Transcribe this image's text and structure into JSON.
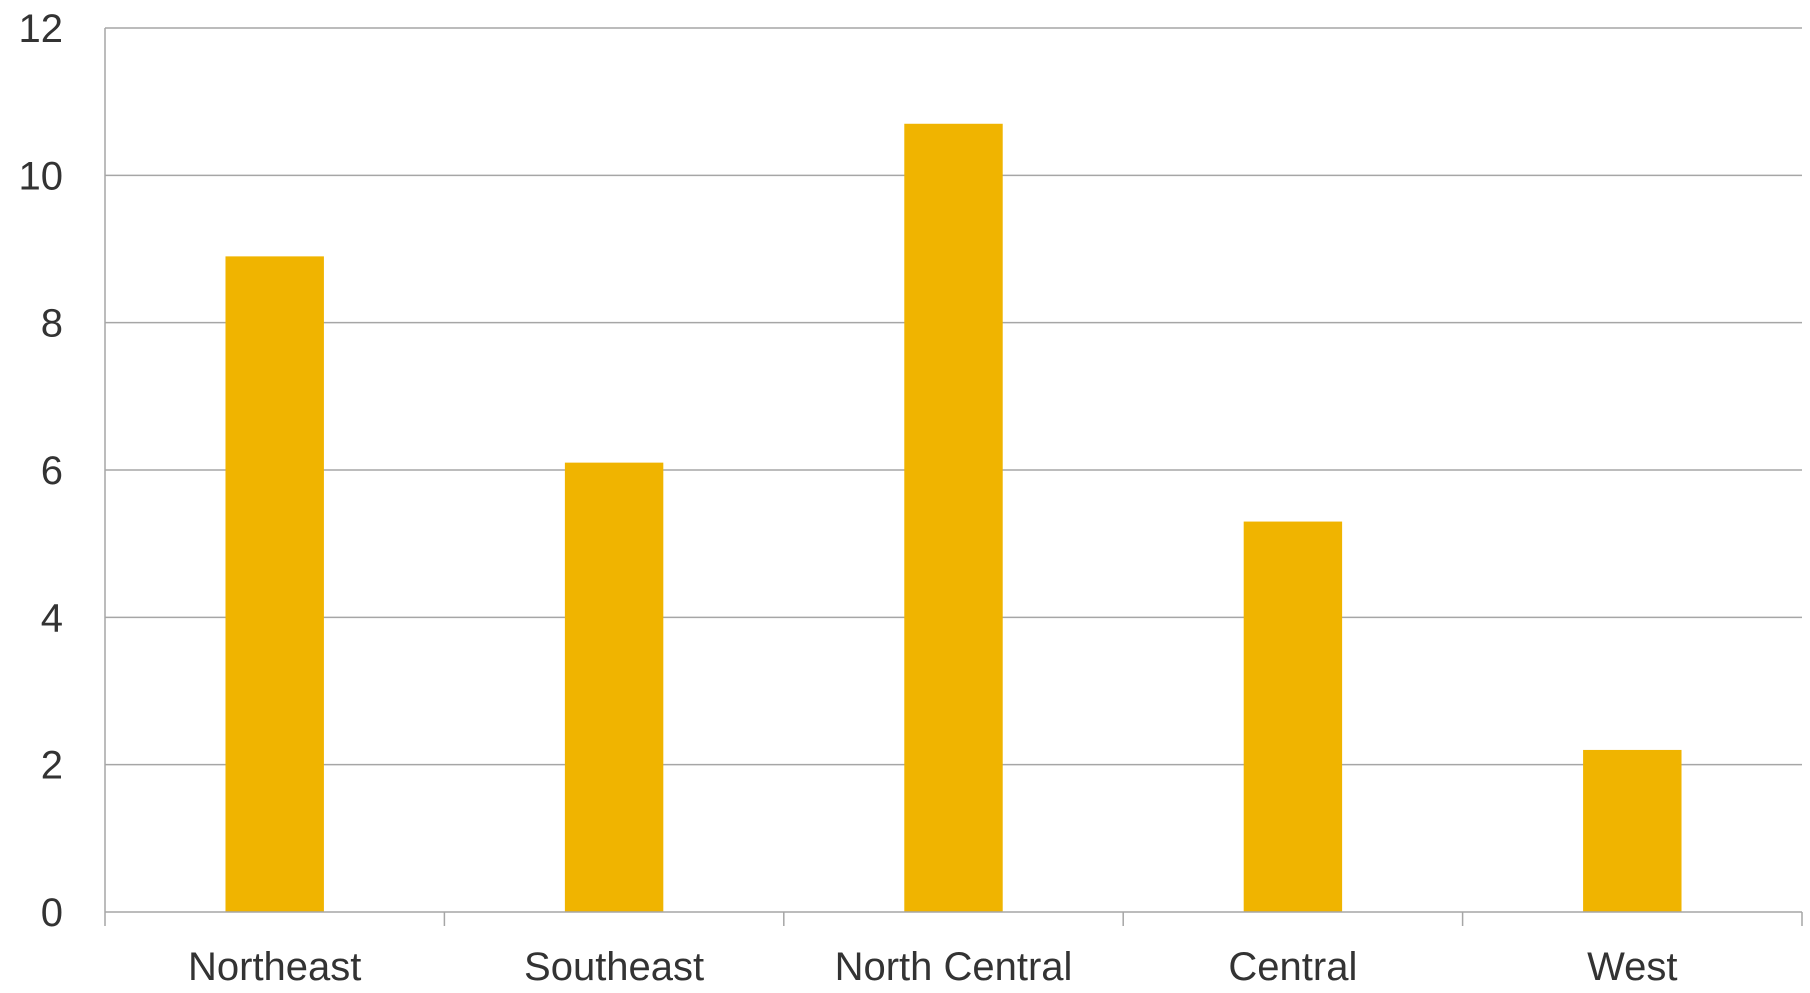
{
  "chart_data": {
    "type": "bar",
    "title": "",
    "xlabel": "",
    "ylabel": "",
    "categories": [
      "Northeast",
      "Southeast",
      "North Central",
      "Central",
      "West"
    ],
    "values": [
      8.9,
      6.1,
      10.7,
      5.3,
      2.2
    ],
    "ylim": [
      0,
      12
    ],
    "yticks": [
      0,
      2,
      4,
      6,
      8,
      10,
      12
    ],
    "grid": true,
    "legend": "none",
    "bar_color": "#f0b400",
    "gridline_color": "#a6a6a6",
    "text_color": "#333333"
  }
}
